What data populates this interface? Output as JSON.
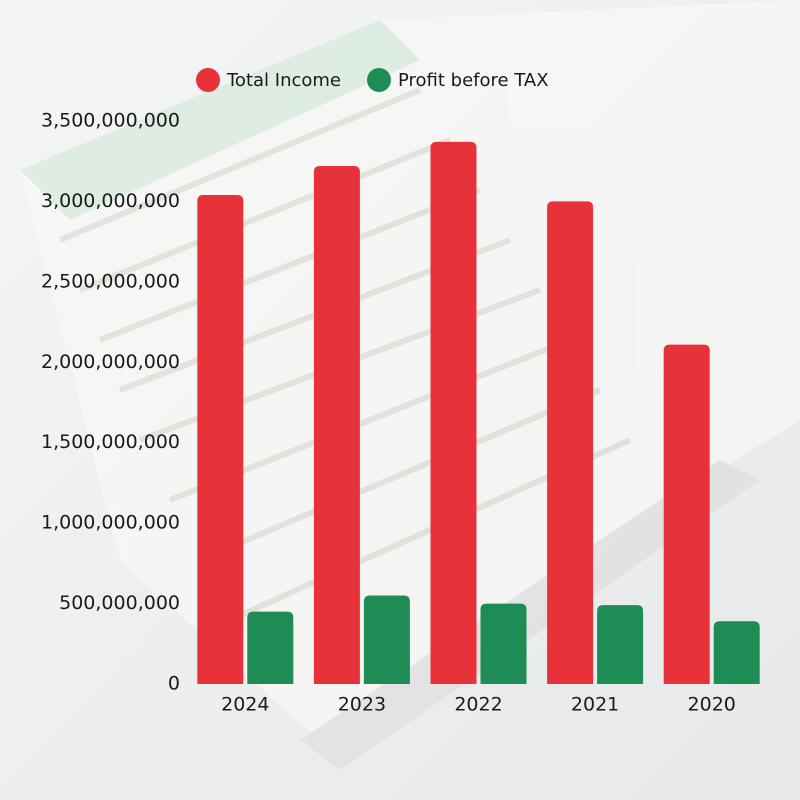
{
  "chart_data": {
    "type": "bar",
    "categories": [
      "2024",
      "2023",
      "2022",
      "2021",
      "2020"
    ],
    "series": [
      {
        "name": "Total Income",
        "color": "#e8323a",
        "values": [
          3040000000,
          3220000000,
          3370000000,
          3000000000,
          2110000000
        ]
      },
      {
        "name": "Profit before TAX",
        "color": "#1f8c55",
        "values": [
          450000000,
          550000000,
          500000000,
          490000000,
          390000000
        ]
      }
    ],
    "ylim": [
      0,
      3500000000
    ],
    "yticks": [
      0,
      {
        "value": 500000000,
        "label": "500,000,000"
      },
      {
        "value": 1000000000,
        "label": "1,000,000,000"
      },
      {
        "value": 1500000000,
        "label": "1,500,000,000"
      },
      {
        "value": 2000000000,
        "label": "2,000,000,000"
      },
      {
        "value": 2500000000,
        "label": "2,500,000,000"
      },
      {
        "value": 3000000000,
        "label": "3,000,000,000"
      },
      {
        "value": 3500000000,
        "label": "3,500,000,000"
      }
    ],
    "grid": false,
    "legend": "top"
  }
}
